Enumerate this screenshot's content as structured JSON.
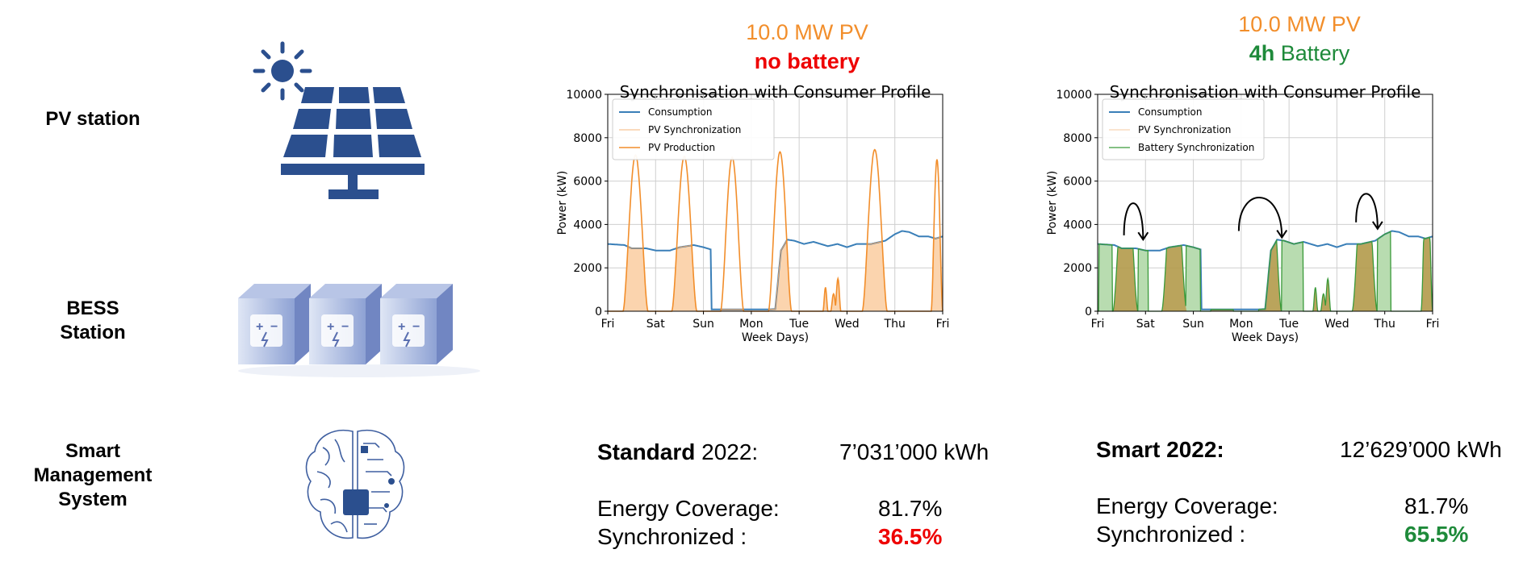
{
  "colors": {
    "pv": "#f28e2b",
    "pv_fill": "#fbd4ae",
    "consumption": "#3a7fb8",
    "battery": "#3a9a3a",
    "battery_fill": "#b8dcb0",
    "overlap_fill": "#b39a4a",
    "icon_blue": "#2b4f8e",
    "red": "#ee0000",
    "green": "#1e8a3a"
  },
  "left_labels": {
    "pv": "PV station",
    "bess_line1": "BESS",
    "bess_line2": "Station",
    "sms_line1": "Smart",
    "sms_line2": "Management",
    "sms_line3": "System"
  },
  "icons": {
    "sun": "sun-icon",
    "solar_panel": "solar-panel-icon",
    "battery_containers": "battery-container-icon",
    "brain_chip": "brain-chip-icon"
  },
  "scenario1": {
    "header_line1": "10.0 MW PV",
    "header_line2": "no battery",
    "stat_name_bold": "Standard",
    "stat_name_rest": " 2022:",
    "energy_value": "7’031’000 kWh",
    "coverage_label": "Energy Coverage:",
    "coverage_value": "81.7%",
    "sync_label": "Synchronized :",
    "sync_value": "36.5%"
  },
  "scenario2": {
    "header_line1": "10.0 MW PV",
    "header_line2_bold": "4h",
    "header_line2_rest": " Battery",
    "stat_name_bold": "Smart 2022:",
    "energy_value": "12’629’000 kWh",
    "coverage_label": "Energy Coverage:",
    "coverage_value": "81.7%",
    "sync_label": "Synchronized :",
    "sync_value": "65.5%"
  },
  "chart_data": [
    {
      "type": "area",
      "title": "Synchronisation with Consumer Profile",
      "xlabel": "Week Days)",
      "ylabel": "Power (kW)",
      "xlim": [
        0,
        7
      ],
      "ylim": [
        0,
        10000
      ],
      "yticks": [
        0,
        2000,
        4000,
        6000,
        8000,
        10000
      ],
      "xtick_labels": [
        "Fri",
        "Sat",
        "Sun",
        "Mon",
        "Tue",
        "Wed",
        "Thu",
        "Fri"
      ],
      "grid": true,
      "legend_position": "top-left",
      "consumption": {
        "name": "Consumption",
        "x": [
          0,
          0.35,
          0.5,
          0.8,
          1.0,
          1.3,
          1.5,
          1.8,
          2.0,
          2.15,
          2.17,
          2.5,
          3.0,
          3.3,
          3.5,
          3.62,
          3.75,
          3.9,
          4.1,
          4.3,
          4.6,
          4.8,
          5.0,
          5.2,
          5.5,
          5.8,
          6.0,
          6.15,
          6.3,
          6.5,
          6.7,
          6.85,
          7.0
        ],
        "values": [
          3100,
          3050,
          2900,
          2900,
          2800,
          2800,
          2950,
          3050,
          2950,
          2850,
          80,
          80,
          80,
          80,
          100,
          2800,
          3300,
          3250,
          3100,
          3200,
          3000,
          3100,
          2950,
          3100,
          3100,
          3250,
          3550,
          3700,
          3650,
          3450,
          3450,
          3350,
          3450
        ]
      },
      "pv_production": {
        "name": "PV Production",
        "peaks": [
          {
            "day": 0,
            "center": 0.58,
            "half_width": 0.26,
            "peak": 7200
          },
          {
            "day": 1,
            "center": 1.6,
            "half_width": 0.26,
            "peak": 7150
          },
          {
            "day": 2,
            "center": 2.6,
            "half_width": 0.24,
            "peak": 7100
          },
          {
            "day": 3,
            "center": 3.6,
            "half_width": 0.24,
            "peak": 7350
          },
          {
            "day": 4,
            "center": 4.55,
            "half_width": 0.05,
            "peak": 1100
          },
          {
            "day": 4,
            "center": 4.72,
            "half_width": 0.06,
            "peak": 800
          },
          {
            "day": 4,
            "center": 4.81,
            "half_width": 0.06,
            "peak": 1500
          },
          {
            "day": 5,
            "center": 5.58,
            "half_width": 0.26,
            "peak": 7450
          },
          {
            "day": 6,
            "center": 6.88,
            "half_width": 0.12,
            "peak": 7000
          }
        ]
      },
      "pv_synchronization": {
        "name": "PV Synchronization",
        "description_series": "min(pv_production, consumption)"
      }
    },
    {
      "type": "area",
      "title": "Synchronisation with Consumer Profile",
      "xlabel": "Week Days)",
      "ylabel": "Power (kW)",
      "xlim": [
        0,
        7
      ],
      "ylim": [
        0,
        10000
      ],
      "yticks": [
        0,
        2000,
        4000,
        6000,
        8000,
        10000
      ],
      "xtick_labels": [
        "Fri",
        "Sat",
        "Sun",
        "Mon",
        "Tue",
        "Wed",
        "Thu",
        "Fri"
      ],
      "grid": true,
      "legend_position": "top-left",
      "consumption": {
        "name": "Consumption",
        "same_as_chart": 0
      },
      "pv_synchronization": {
        "name": "PV Synchronization"
      },
      "battery_synchronization": {
        "name": "Battery Synchronization",
        "blocks": [
          [
            0.03,
            0.3
          ],
          [
            0.85,
            1.05
          ],
          [
            1.85,
            2.15
          ],
          [
            3.85,
            4.3
          ],
          [
            5.85,
            6.12
          ]
        ]
      }
    }
  ]
}
